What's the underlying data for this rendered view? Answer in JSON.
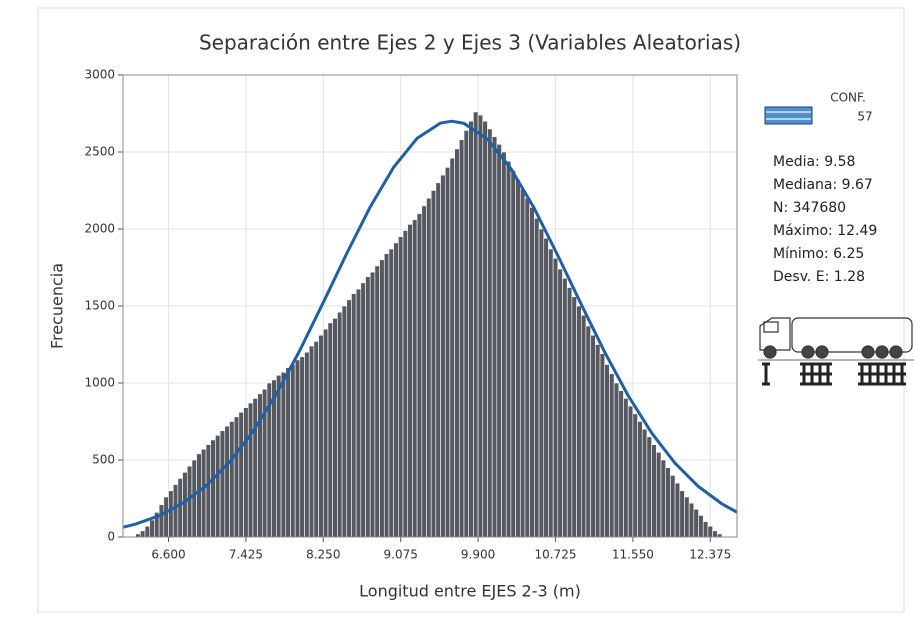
{
  "chart_data": {
    "type": "histogram",
    "title": "Separación entre Ejes 2 y Ejes 3 (Variables Aleatorias)",
    "x_label": "Longitud entre EJES 2-3 (m)",
    "y_label": "Frecuencia",
    "legend_title": "CONF.",
    "name": "57",
    "color": "#55595f",
    "legend_color": "#4d8fd6",
    "grid": true,
    "xlim": [
      6.115,
      12.66
    ],
    "ylim": [
      0,
      3000
    ],
    "xticks": [
      {
        "value": 6.6,
        "label": "6.600"
      },
      {
        "value": 7.425,
        "label": "7.425"
      },
      {
        "value": 8.25,
        "label": "8.250"
      },
      {
        "value": 9.075,
        "label": "9.075"
      },
      {
        "value": 9.9,
        "label": "9.900"
      },
      {
        "value": 10.725,
        "label": "10.725"
      },
      {
        "value": 11.55,
        "label": "11.550"
      },
      {
        "value": 12.375,
        "label": "12.375"
      }
    ],
    "yticks": [
      0,
      500,
      1000,
      1500,
      2000,
      2500,
      3000
    ],
    "bins": [
      6.25,
      6.3,
      6.35,
      6.4,
      6.45,
      6.5,
      6.55,
      6.6,
      6.65,
      6.7,
      6.75,
      6.8,
      6.85,
      6.9,
      6.95,
      7,
      7.05,
      7.1,
      7.15,
      7.2,
      7.25,
      7.3,
      7.35,
      7.4,
      7.45,
      7.5,
      7.55,
      7.6,
      7.65,
      7.7,
      7.75,
      7.8,
      7.85,
      7.9,
      7.95,
      8,
      8.05,
      8.1,
      8.15,
      8.2,
      8.25,
      8.3,
      8.35,
      8.4,
      8.45,
      8.5,
      8.55,
      8.6,
      8.65,
      8.7,
      8.75,
      8.8,
      8.85,
      8.9,
      8.95,
      9,
      9.05,
      9.1,
      9.15,
      9.2,
      9.25,
      9.3,
      9.35,
      9.4,
      9.45,
      9.5,
      9.55,
      9.6,
      9.65,
      9.7,
      9.75,
      9.8,
      9.85,
      9.9,
      9.95,
      10,
      10.05,
      10.1,
      10.15,
      10.2,
      10.25,
      10.3,
      10.35,
      10.4,
      10.45,
      10.5,
      10.55,
      10.6,
      10.65,
      10.7,
      10.75,
      10.8,
      10.85,
      10.9,
      10.95,
      11,
      11.05,
      11.1,
      11.15,
      11.2,
      11.25,
      11.3,
      11.35,
      11.4,
      11.45,
      11.5,
      11.55,
      11.6,
      11.65,
      11.7,
      11.75,
      11.8,
      11.85,
      11.9,
      11.95,
      12,
      12.05,
      12.1,
      12.15,
      12.2,
      12.25,
      12.3,
      12.35,
      12.4,
      12.45,
      12.5
    ],
    "values": [
      20,
      40,
      70,
      110,
      160,
      210,
      260,
      300,
      340,
      380,
      420,
      460,
      500,
      540,
      570,
      600,
      630,
      660,
      690,
      720,
      750,
      780,
      810,
      840,
      870,
      900,
      930,
      960,
      1000,
      1020,
      1050,
      1070,
      1100,
      1120,
      1150,
      1170,
      1200,
      1240,
      1270,
      1310,
      1350,
      1390,
      1420,
      1460,
      1500,
      1540,
      1580,
      1610,
      1650,
      1690,
      1720,
      1760,
      1800,
      1840,
      1870,
      1910,
      1950,
      1990,
      2030,
      2060,
      2100,
      2150,
      2200,
      2250,
      2300,
      2350,
      2400,
      2460,
      2520,
      2580,
      2640,
      2700,
      2760,
      2740,
      2700,
      2650,
      2600,
      2550,
      2500,
      2440,
      2380,
      2320,
      2260,
      2200,
      2140,
      2070,
      2000,
      1940,
      1870,
      1810,
      1740,
      1680,
      1620,
      1560,
      1500,
      1440,
      1370,
      1310,
      1250,
      1190,
      1120,
      1060,
      1000,
      950,
      900,
      850,
      800,
      750,
      700,
      650,
      600,
      550,
      500,
      450,
      400,
      350,
      300,
      260,
      220,
      180,
      140,
      100,
      70,
      40,
      20
    ],
    "fit": {
      "type": "line",
      "color": "#1f5fa8",
      "x": [
        6.12,
        6.25,
        6.5,
        6.75,
        7,
        7.25,
        7.5,
        7.75,
        8,
        8.25,
        8.5,
        8.75,
        9,
        9.25,
        9.5,
        9.62,
        9.75,
        10,
        10.25,
        10.5,
        10.75,
        11,
        11.25,
        11.5,
        11.75,
        12,
        12.25,
        12.5,
        12.66
      ],
      "values": [
        64,
        84,
        138,
        219,
        332,
        486,
        685,
        929,
        1212,
        1523,
        1841,
        2143,
        2401,
        2589,
        2688,
        2700,
        2686,
        2584,
        2392,
        2133,
        1828,
        1510,
        1200,
        918,
        676,
        479,
        327,
        215,
        161
      ]
    },
    "annotations": [
      "Media: 9.58",
      "Mediana: 9.67",
      "N: 347680",
      "Máximo: 12.49",
      "Mínimo: 6.25",
      "Desv. E: 1.28"
    ]
  }
}
